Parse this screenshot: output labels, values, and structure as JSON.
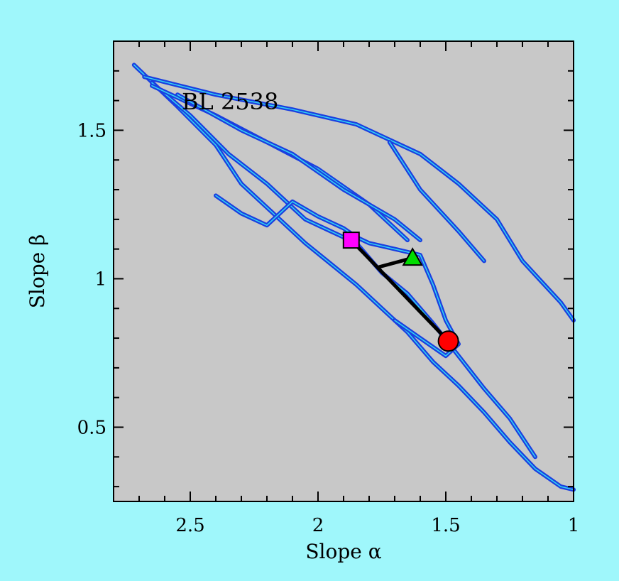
{
  "colors": {
    "page_background": "#9ff7fb",
    "plot_background": "#c8c8c8",
    "track_outer": "#1a3fe0",
    "track_inner": "#33d6f2",
    "circle_marker": "#ff0000",
    "square_marker": "#ff00ff",
    "triangle_marker": "#00dd00",
    "connector": "#000000"
  },
  "chart_data": {
    "type": "line",
    "title": "BL 2538",
    "xlabel": "Slope α",
    "ylabel": "Slope β",
    "xlim": [
      2.8,
      1.0
    ],
    "ylim": [
      1.8,
      0.25
    ],
    "x_reversed": true,
    "y_reversed": true,
    "x_ticks": [
      2.5,
      2,
      1.5,
      1
    ],
    "x_tick_labels": [
      "2.5",
      "2",
      "1.5",
      "1"
    ],
    "y_ticks": [
      0.5,
      1,
      1.5
    ],
    "y_tick_labels": [
      "0.5",
      "1",
      "1.5"
    ],
    "grid": false,
    "legend": "none",
    "series": [
      {
        "role": "trajectory-band-upper",
        "x": [
          2.72,
          2.55,
          2.4,
          2.3,
          2.15,
          2.05,
          1.95,
          1.85,
          1.75,
          1.65,
          1.55,
          1.45,
          1.35,
          1.25,
          1.15,
          1.05,
          1.0
        ],
        "y": [
          1.72,
          1.58,
          1.45,
          1.32,
          1.2,
          1.12,
          1.05,
          0.98,
          0.9,
          0.82,
          0.72,
          0.64,
          0.55,
          0.45,
          0.36,
          0.3,
          0.29
        ]
      },
      {
        "role": "trajectory-band-mid",
        "x": [
          2.65,
          2.5,
          2.35,
          2.2,
          2.05,
          1.95,
          1.85,
          1.75,
          1.65,
          1.55,
          1.45,
          1.35,
          1.25,
          1.15
        ],
        "y": [
          1.66,
          1.55,
          1.42,
          1.32,
          1.2,
          1.16,
          1.12,
          1.02,
          0.95,
          0.85,
          0.74,
          0.63,
          0.53,
          0.4
        ]
      },
      {
        "role": "trajectory-loop",
        "x": [
          2.4,
          2.3,
          2.2,
          2.1,
          2.0,
          1.9,
          1.85,
          1.8,
          1.7,
          1.6,
          1.55,
          1.5,
          1.45,
          1.5,
          1.6,
          1.7
        ],
        "y": [
          1.28,
          1.22,
          1.18,
          1.26,
          1.21,
          1.17,
          1.14,
          1.12,
          1.1,
          1.08,
          0.98,
          0.86,
          0.78,
          0.74,
          0.8,
          0.86
        ]
      },
      {
        "role": "trajectory-fan-1",
        "x": [
          2.65,
          2.4,
          2.2,
          2.0,
          1.8,
          1.65
        ],
        "y": [
          1.65,
          1.55,
          1.46,
          1.37,
          1.25,
          1.13
        ]
      },
      {
        "role": "trajectory-fan-2",
        "x": [
          2.55,
          2.3,
          2.1,
          1.9,
          1.7,
          1.6
        ],
        "y": [
          1.62,
          1.5,
          1.42,
          1.3,
          1.2,
          1.13
        ]
      },
      {
        "role": "trajectory-tail",
        "x": [
          2.68,
          2.4,
          2.1,
          1.85,
          1.6,
          1.45,
          1.3,
          1.2,
          1.05,
          1.0
        ],
        "y": [
          1.68,
          1.62,
          1.57,
          1.52,
          1.42,
          1.32,
          1.2,
          1.06,
          0.92,
          0.86
        ]
      },
      {
        "role": "trajectory-thin-tail",
        "x": [
          1.72,
          1.6,
          1.45,
          1.35
        ],
        "y": [
          1.46,
          1.3,
          1.16,
          1.06
        ]
      }
    ],
    "markers": [
      {
        "shape": "circle",
        "x": 1.49,
        "y": 0.79
      },
      {
        "shape": "square",
        "x": 1.87,
        "y": 1.13
      },
      {
        "shape": "triangle",
        "x": 1.63,
        "y": 1.07
      }
    ],
    "connectors": [
      {
        "from": [
          1.49,
          0.79
        ],
        "to": [
          1.87,
          1.13
        ]
      },
      {
        "from": [
          1.76,
          1.04
        ],
        "to": [
          1.63,
          1.07
        ]
      }
    ]
  }
}
